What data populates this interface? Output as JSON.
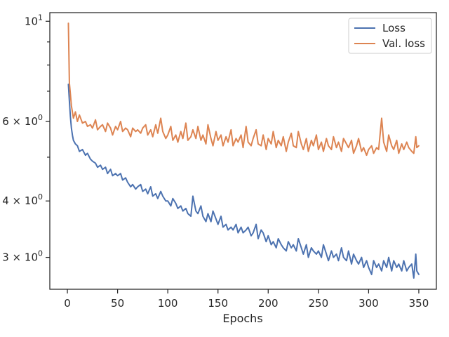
{
  "chart_data": {
    "type": "line",
    "xlabel": "Epochs",
    "ylabel": "",
    "xlim": [
      -17.5,
      367.5
    ],
    "ylim": [
      2.55,
      10.45
    ],
    "yscale": "log",
    "x_ticks": [
      0,
      50,
      100,
      150,
      200,
      250,
      300,
      350
    ],
    "y_ticks": [
      {
        "value": 10,
        "base": "10",
        "exp": "1"
      },
      {
        "value": 6,
        "base": "6 × 10",
        "exp": "0"
      },
      {
        "value": 4,
        "base": "4 × 10",
        "exp": "0"
      },
      {
        "value": 3,
        "base": "3 × 10",
        "exp": "0"
      }
    ],
    "y_minor_ticks": [
      9,
      8,
      7,
      5
    ],
    "grid": false,
    "legend_position": "top-right",
    "series": [
      {
        "name": "Loss",
        "color": "#4c72b0",
        "x": [
          1,
          2,
          3,
          4,
          5,
          6,
          8,
          10,
          12,
          15,
          18,
          20,
          23,
          25,
          28,
          30,
          33,
          35,
          38,
          40,
          43,
          45,
          48,
          50,
          53,
          55,
          58,
          60,
          63,
          65,
          68,
          70,
          73,
          75,
          78,
          80,
          83,
          85,
          88,
          90,
          93,
          95,
          98,
          100,
          103,
          105,
          108,
          110,
          113,
          115,
          118,
          120,
          123,
          125,
          128,
          130,
          133,
          135,
          138,
          140,
          143,
          145,
          148,
          150,
          153,
          155,
          158,
          160,
          163,
          165,
          168,
          170,
          173,
          175,
          178,
          180,
          183,
          185,
          188,
          190,
          193,
          195,
          198,
          200,
          203,
          205,
          208,
          210,
          213,
          215,
          218,
          220,
          223,
          225,
          228,
          230,
          233,
          235,
          238,
          240,
          243,
          245,
          248,
          250,
          253,
          255,
          258,
          260,
          263,
          265,
          268,
          270,
          273,
          275,
          278,
          280,
          283,
          285,
          288,
          290,
          293,
          295,
          298,
          300,
          303,
          305,
          308,
          310,
          313,
          315,
          318,
          320,
          323,
          325,
          328,
          330,
          333,
          335,
          338,
          340,
          343,
          345,
          347,
          348,
          350
        ],
        "values": [
          7.25,
          6.65,
          6.15,
          5.8,
          5.6,
          5.45,
          5.35,
          5.3,
          5.15,
          5.2,
          5.05,
          5.1,
          4.95,
          4.9,
          4.85,
          4.75,
          4.8,
          4.7,
          4.75,
          4.6,
          4.7,
          4.55,
          4.6,
          4.55,
          4.6,
          4.45,
          4.5,
          4.4,
          4.3,
          4.35,
          4.25,
          4.3,
          4.35,
          4.2,
          4.25,
          4.15,
          4.3,
          4.1,
          4.15,
          4.05,
          4.2,
          4.1,
          4.0,
          4.0,
          3.9,
          4.05,
          3.95,
          3.85,
          3.9,
          3.8,
          3.85,
          3.75,
          3.7,
          4.1,
          3.8,
          3.75,
          3.9,
          3.7,
          3.6,
          3.75,
          3.6,
          3.8,
          3.65,
          3.55,
          3.7,
          3.5,
          3.55,
          3.45,
          3.5,
          3.45,
          3.55,
          3.4,
          3.5,
          3.4,
          3.45,
          3.5,
          3.35,
          3.4,
          3.55,
          3.3,
          3.45,
          3.4,
          3.25,
          3.35,
          3.2,
          3.25,
          3.15,
          3.3,
          3.2,
          3.15,
          3.1,
          3.25,
          3.15,
          3.2,
          3.1,
          3.3,
          3.15,
          3.05,
          3.2,
          3.0,
          3.15,
          3.1,
          3.05,
          3.1,
          3.0,
          3.2,
          3.05,
          2.95,
          3.1,
          3.0,
          3.05,
          2.95,
          3.15,
          3.0,
          2.95,
          3.1,
          2.9,
          3.05,
          2.95,
          2.9,
          3.0,
          2.85,
          2.95,
          2.85,
          2.75,
          2.95,
          2.85,
          2.9,
          2.8,
          2.95,
          2.85,
          3.0,
          2.8,
          2.95,
          2.85,
          2.9,
          2.8,
          2.95,
          2.8,
          2.85,
          2.9,
          2.7,
          3.05,
          2.8,
          2.75
        ]
      },
      {
        "name": "Val. loss",
        "color": "#dd8452",
        "x": [
          1,
          2,
          3,
          4,
          5,
          6,
          8,
          10,
          12,
          15,
          18,
          20,
          23,
          25,
          28,
          30,
          33,
          35,
          38,
          40,
          43,
          45,
          48,
          50,
          53,
          55,
          58,
          60,
          63,
          65,
          68,
          70,
          73,
          75,
          78,
          80,
          83,
          85,
          88,
          90,
          93,
          95,
          98,
          100,
          103,
          105,
          108,
          110,
          113,
          115,
          118,
          120,
          123,
          125,
          128,
          130,
          133,
          135,
          138,
          140,
          143,
          145,
          148,
          150,
          153,
          155,
          158,
          160,
          163,
          165,
          168,
          170,
          173,
          175,
          178,
          180,
          183,
          185,
          188,
          190,
          193,
          195,
          198,
          200,
          203,
          205,
          208,
          210,
          213,
          215,
          218,
          220,
          223,
          225,
          228,
          230,
          233,
          235,
          238,
          240,
          243,
          245,
          248,
          250,
          253,
          255,
          258,
          260,
          263,
          265,
          268,
          270,
          273,
          275,
          278,
          280,
          283,
          285,
          288,
          290,
          293,
          295,
          298,
          300,
          303,
          305,
          308,
          310,
          313,
          315,
          318,
          320,
          323,
          325,
          328,
          330,
          333,
          335,
          338,
          340,
          343,
          345,
          347,
          348,
          350
        ],
        "values": [
          9.9,
          7.3,
          6.9,
          6.5,
          6.3,
          6.1,
          6.3,
          6.0,
          6.2,
          5.95,
          6.0,
          5.85,
          5.9,
          5.8,
          6.05,
          5.75,
          5.85,
          5.9,
          5.7,
          5.95,
          5.8,
          5.6,
          5.85,
          5.75,
          6.0,
          5.7,
          5.8,
          5.75,
          5.55,
          5.8,
          5.7,
          5.75,
          5.65,
          5.8,
          5.9,
          5.6,
          5.75,
          5.55,
          5.9,
          5.65,
          6.1,
          5.7,
          5.5,
          5.6,
          5.85,
          5.45,
          5.6,
          5.4,
          5.7,
          5.5,
          5.95,
          5.45,
          5.55,
          5.75,
          5.5,
          5.85,
          5.45,
          5.6,
          5.35,
          5.9,
          5.5,
          5.3,
          5.7,
          5.45,
          5.6,
          5.3,
          5.55,
          5.4,
          5.75,
          5.3,
          5.5,
          5.4,
          5.6,
          5.25,
          5.85,
          5.4,
          5.3,
          5.5,
          5.75,
          5.35,
          5.3,
          5.6,
          5.2,
          5.5,
          5.35,
          5.7,
          5.25,
          5.45,
          5.3,
          5.55,
          5.15,
          5.4,
          5.65,
          5.3,
          5.25,
          5.7,
          5.35,
          5.2,
          5.5,
          5.15,
          5.45,
          5.3,
          5.6,
          5.2,
          5.4,
          5.15,
          5.5,
          5.3,
          5.2,
          5.55,
          5.25,
          5.4,
          5.15,
          5.5,
          5.35,
          5.25,
          5.45,
          5.1,
          5.3,
          5.5,
          5.15,
          5.25,
          5.05,
          5.2,
          5.3,
          5.1,
          5.25,
          5.2,
          6.1,
          5.4,
          5.15,
          5.6,
          5.3,
          5.2,
          5.45,
          5.1,
          5.35,
          5.2,
          5.4,
          5.25,
          5.15,
          5.1,
          5.55,
          5.25,
          5.3
        ]
      }
    ]
  }
}
